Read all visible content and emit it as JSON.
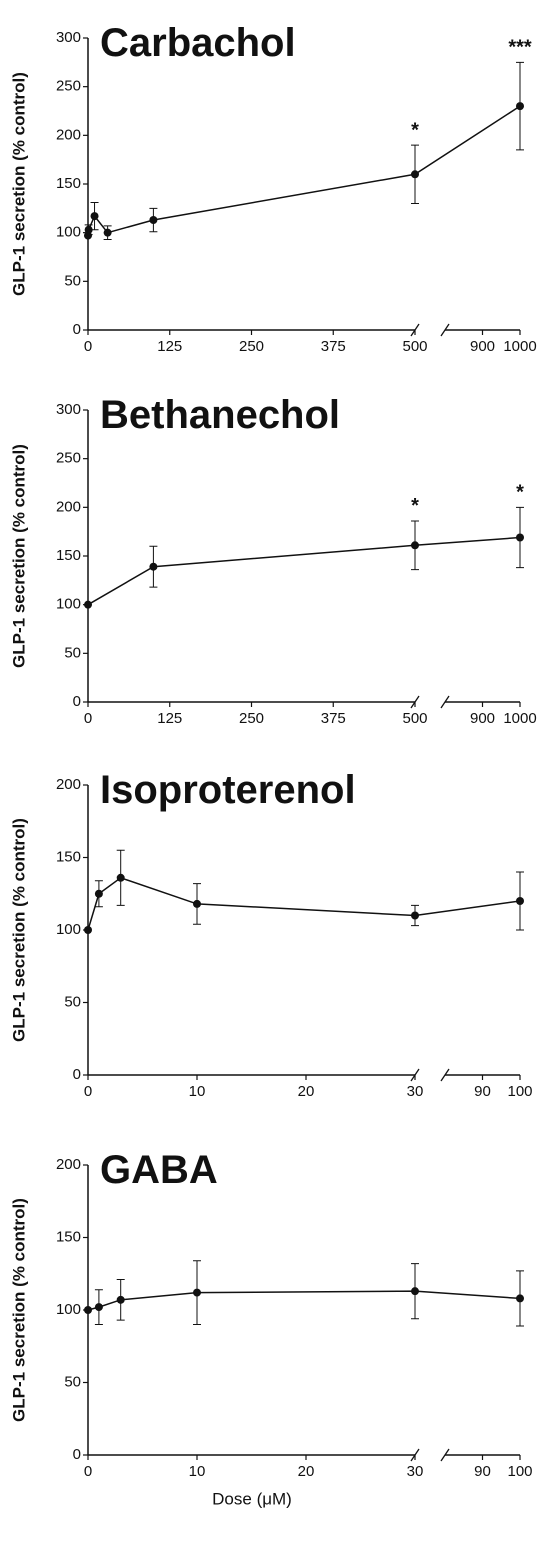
{
  "chart_data": [
    {
      "type": "line",
      "title": "Carbachol",
      "ylabel": "GLP-1 secretion (% control)",
      "x": [
        0,
        1,
        10,
        30,
        100,
        500,
        1000
      ],
      "values": [
        97,
        103,
        117,
        100,
        113,
        160,
        230
      ],
      "errors": [
        0,
        5,
        14,
        7,
        12,
        30,
        45
      ],
      "annotations": [
        {
          "text": "*",
          "x": 500
        },
        {
          "text": "***",
          "x": 1000
        }
      ],
      "ylim": [
        0,
        300
      ],
      "yticks": [
        0,
        50,
        100,
        150,
        200,
        250,
        300
      ],
      "xsegments": [
        {
          "xlim": [
            0,
            500
          ],
          "xticks": [
            0,
            125,
            250,
            375,
            500
          ]
        },
        {
          "xlim": [
            800,
            1000
          ],
          "xticks": [
            900,
            1000
          ]
        }
      ],
      "color": "#111"
    },
    {
      "type": "line",
      "title": "Bethanechol",
      "ylabel": "GLP-1 secretion (% control)",
      "x": [
        0,
        100,
        500,
        1000
      ],
      "values": [
        100,
        139,
        161,
        169
      ],
      "errors": [
        0,
        21,
        25,
        31
      ],
      "annotations": [
        {
          "text": "*",
          "x": 500
        },
        {
          "text": "*",
          "x": 1000
        }
      ],
      "ylim": [
        0,
        300
      ],
      "yticks": [
        0,
        50,
        100,
        150,
        200,
        250,
        300
      ],
      "xsegments": [
        {
          "xlim": [
            0,
            500
          ],
          "xticks": [
            0,
            125,
            250,
            375,
            500
          ]
        },
        {
          "xlim": [
            800,
            1000
          ],
          "xticks": [
            900,
            1000
          ]
        }
      ],
      "color": "#111"
    },
    {
      "type": "line",
      "title": "Isoproterenol",
      "ylabel": "GLP-1 secretion (% control)",
      "x": [
        0,
        1,
        3,
        10,
        30,
        100
      ],
      "values": [
        100,
        125,
        136,
        118,
        110,
        120
      ],
      "errors": [
        0,
        9,
        19,
        14,
        7,
        20
      ],
      "ylim": [
        0,
        200
      ],
      "yticks": [
        0,
        50,
        100,
        150,
        200
      ],
      "xsegments": [
        {
          "xlim": [
            0,
            30
          ],
          "xticks": [
            0,
            10,
            20,
            30
          ]
        },
        {
          "xlim": [
            80,
            100
          ],
          "xticks": [
            90,
            100
          ]
        }
      ],
      "color": "#111"
    },
    {
      "type": "line",
      "title": "GABA",
      "ylabel": "GLP-1 secretion (% control)",
      "xlabel": "Dose (μM)",
      "x": [
        0,
        1,
        3,
        10,
        30,
        100
      ],
      "values": [
        100,
        102,
        107,
        112,
        113,
        108
      ],
      "errors": [
        0,
        12,
        14,
        22,
        19,
        19
      ],
      "ylim": [
        0,
        200
      ],
      "yticks": [
        0,
        50,
        100,
        150,
        200
      ],
      "xsegments": [
        {
          "xlim": [
            0,
            30
          ],
          "xticks": [
            0,
            10,
            20,
            30
          ]
        },
        {
          "xlim": [
            80,
            100
          ],
          "xticks": [
            90,
            100
          ]
        }
      ],
      "color": "#111"
    }
  ]
}
